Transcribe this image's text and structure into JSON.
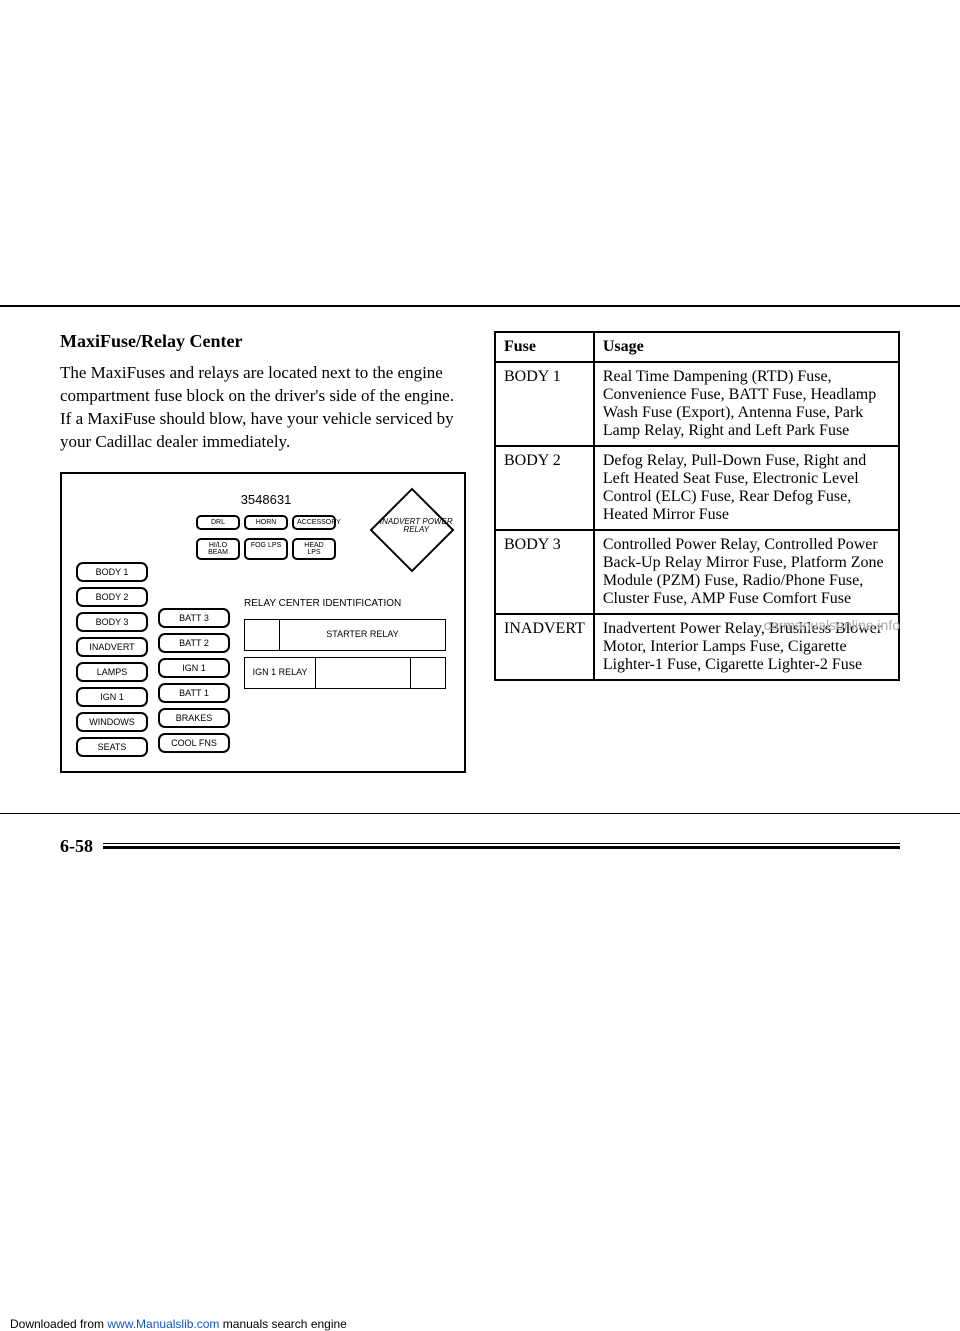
{
  "section_title": "MaxiFuse/Relay Center",
  "body_text": "The MaxiFuses and relays are located next to the engine compartment fuse block on the driver's side of the engine. If a MaxiFuse should blow, have your vehicle serviced by your Cadillac dealer immediately.",
  "diagram": {
    "part_number": "3548631",
    "diamond_label": "INADVERT POWER RELAY",
    "small_fuses_row1": [
      "DRL",
      "HORN",
      "ACCESSORY"
    ],
    "small_fuses_row2": [
      "HI/LO BEAM",
      "FOG LPS",
      "HEAD LPS"
    ],
    "left_col": [
      "BODY 1",
      "BODY 2",
      "BODY 3",
      "INADVERT",
      "LAMPS",
      "IGN 1",
      "WINDOWS",
      "SEATS"
    ],
    "mid_col": [
      "BATT 3",
      "BATT 2",
      "IGN 1",
      "BATT 1",
      "BRAKES",
      "COOL FNS"
    ],
    "relay_center_title": "RELAY CENTER IDENTIFICATION",
    "relay1": "STARTER RELAY",
    "relay2": "IGN 1 RELAY"
  },
  "table": {
    "headers": [
      "Fuse",
      "Usage"
    ],
    "rows": [
      [
        "BODY 1",
        "Real Time Dampening (RTD) Fuse, Convenience Fuse, BATT Fuse, Headlamp Wash Fuse (Export), Antenna Fuse, Park Lamp Relay, Right and Left Park Fuse"
      ],
      [
        "BODY 2",
        "Defog Relay, Pull-Down Fuse, Right and Left Heated Seat Fuse, Electronic Level Control (ELC) Fuse, Rear Defog Fuse, Heated Mirror Fuse"
      ],
      [
        "BODY 3",
        "Controlled Power Relay, Controlled Power Back-Up Relay Mirror Fuse, Platform Zone Module (PZM) Fuse, Radio/Phone Fuse, Cluster Fuse, AMP Fuse Comfort Fuse"
      ],
      [
        "INADVERT",
        "Inadvertent Power Relay, Brushless Blower Motor, Interior Lamps Fuse, Cigarette Lighter-1 Fuse, Cigarette Lighter-2 Fuse"
      ]
    ]
  },
  "page_number": "6-58",
  "watermark_right": "carmanualsonline.info",
  "download_text": "Downloaded from ",
  "download_link": "www.Manualslib.com",
  "download_tail": " manuals search engine"
}
